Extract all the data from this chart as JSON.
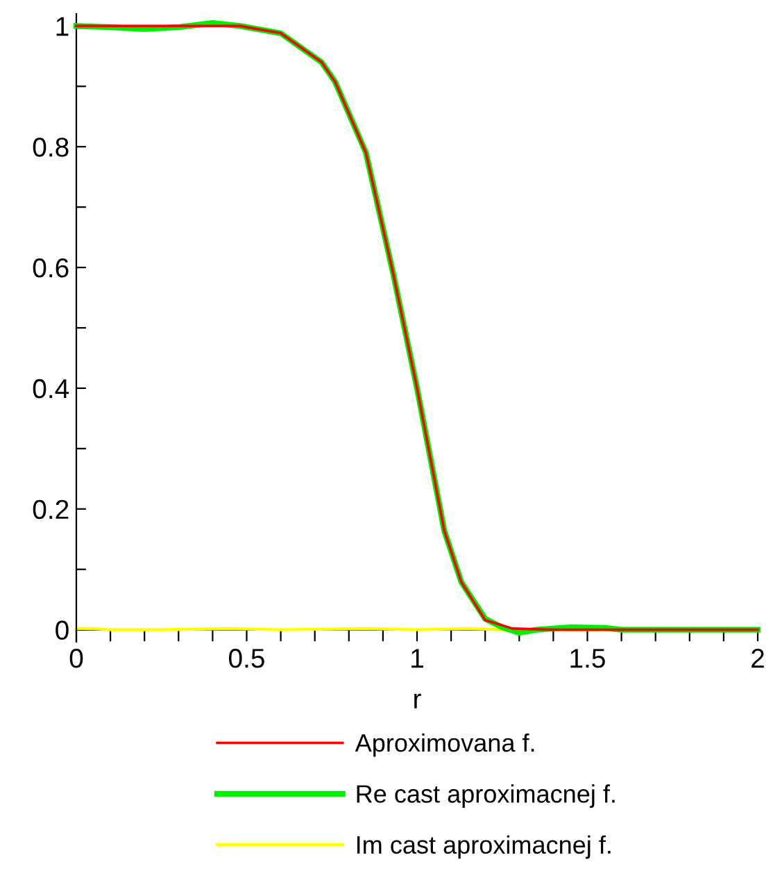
{
  "chart_data": {
    "type": "line",
    "xlabel": "r",
    "legend": "bottom",
    "grid": false,
    "marker": "none",
    "line_style": "solid",
    "xlim": [
      0,
      2
    ],
    "ylim": [
      -0.02,
      1.02
    ],
    "xticks": [
      0,
      {
        "value": 0.1,
        "label": null
      },
      {
        "value": 0.2,
        "label": null
      },
      {
        "value": 0.3,
        "label": null
      },
      {
        "value": 0.4,
        "label": null
      },
      0.5,
      {
        "value": 0.6,
        "label": null
      },
      {
        "value": 0.7,
        "label": null
      },
      {
        "value": 0.8,
        "label": null
      },
      {
        "value": 0.9,
        "label": null
      },
      1,
      {
        "value": 1.1,
        "label": null
      },
      {
        "value": 1.2,
        "label": null
      },
      {
        "value": 1.3,
        "label": null
      },
      {
        "value": 1.4,
        "label": null
      },
      1.5,
      {
        "value": 1.6,
        "label": null
      },
      {
        "value": 1.7,
        "label": null
      },
      {
        "value": 1.8,
        "label": null
      },
      {
        "value": 1.9,
        "label": null
      },
      2
    ],
    "yticks": [
      0,
      {
        "value": 0.1,
        "label": null
      },
      0.2,
      {
        "value": 0.3,
        "label": null
      },
      0.4,
      {
        "value": 0.5,
        "label": null
      },
      0.6,
      {
        "value": 0.7,
        "label": null
      },
      0.8,
      {
        "value": 0.9,
        "label": null
      },
      1
    ],
    "series": [
      {
        "name": "Aproximovana f.",
        "color": "#ff0000",
        "x": [
          0,
          0.3,
          0.48,
          0.6,
          0.72,
          0.76,
          0.85,
          0.93,
          1.0,
          1.08,
          1.13,
          1.2,
          1.28,
          1.4,
          1.6,
          1.8,
          2
        ],
        "values": [
          1,
          1,
          1,
          0.988,
          0.94,
          0.907,
          0.79,
          0.59,
          0.4,
          0.164,
          0.079,
          0.016,
          0.002,
          0,
          0,
          0,
          0
        ]
      },
      {
        "name": "Re cast aproximacnej f.",
        "color": "#00ee00",
        "x": [
          0,
          0.1,
          0.2,
          0.3,
          0.4,
          0.48,
          0.6,
          0.72,
          0.76,
          0.85,
          0.93,
          1.0,
          1.08,
          1.13,
          1.2,
          1.25,
          1.3,
          1.35,
          1.45,
          1.55,
          1.6,
          1.8,
          2
        ],
        "values": [
          1,
          0.998,
          0.995,
          0.998,
          1.005,
          1,
          0.988,
          0.94,
          0.907,
          0.79,
          0.59,
          0.4,
          0.164,
          0.079,
          0.018,
          0.004,
          -0.005,
          0,
          0.004,
          0.003,
          0,
          0,
          0
        ]
      },
      {
        "name": "Im cast aproximacnej f.",
        "color": "#ffff00",
        "x": [
          0,
          0.05,
          0.1,
          0.25,
          0.45,
          0.6,
          0.85,
          1.0,
          1.15,
          1.25,
          1.5,
          2
        ],
        "values": [
          0.002,
          0.002,
          0,
          0,
          0.002,
          0,
          0.002,
          0,
          0.002,
          0,
          0,
          0
        ]
      }
    ]
  }
}
